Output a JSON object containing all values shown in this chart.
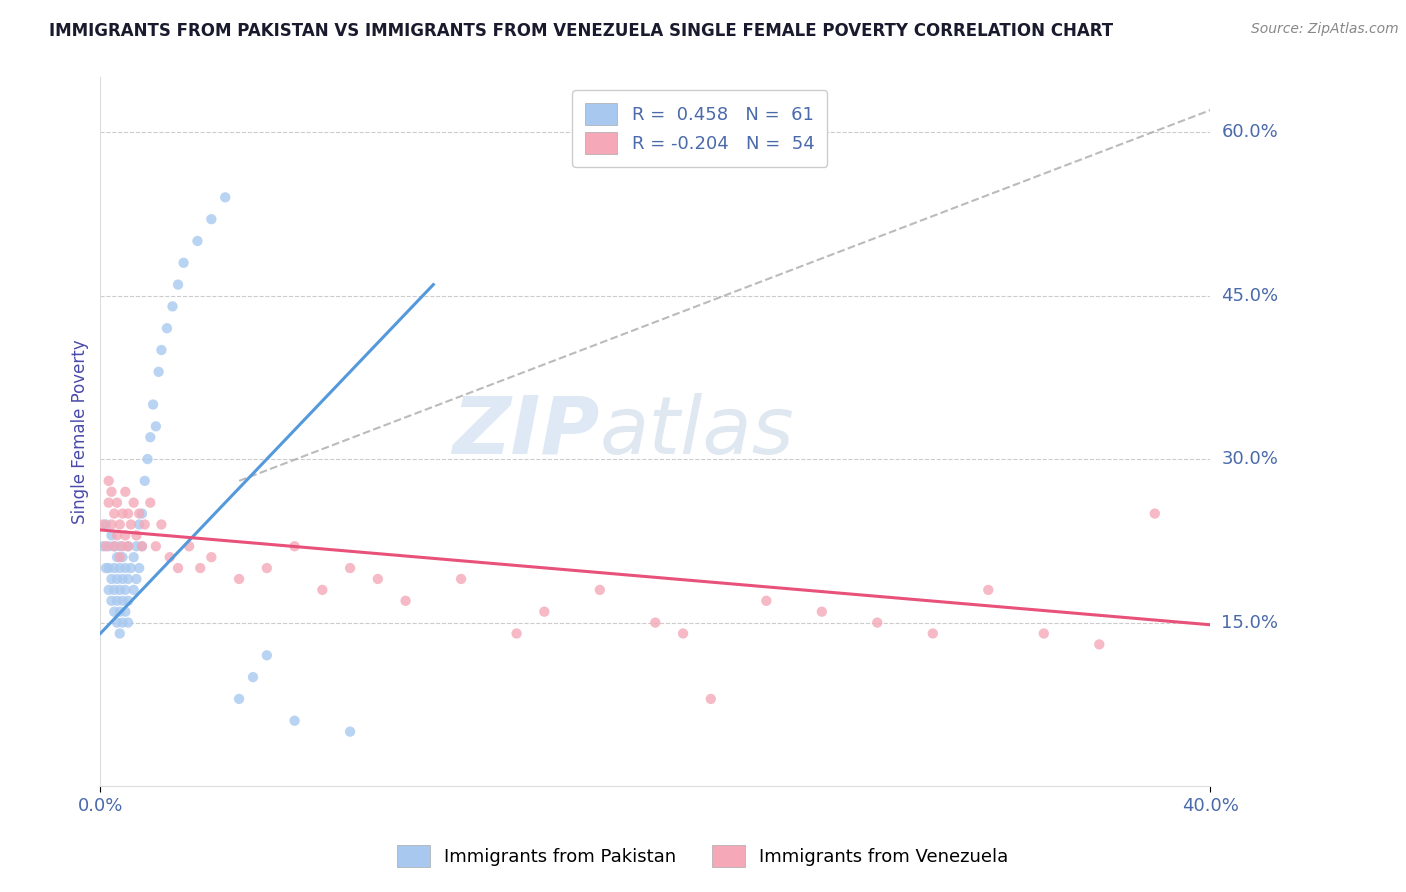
{
  "title": "IMMIGRANTS FROM PAKISTAN VS IMMIGRANTS FROM VENEZUELA SINGLE FEMALE POVERTY CORRELATION CHART",
  "source": "Source: ZipAtlas.com",
  "ylabel_left": "Single Female Poverty",
  "x_min": 0.0,
  "x_max": 0.4,
  "y_min": 0.0,
  "y_max": 0.65,
  "right_yticks": [
    0.6,
    0.45,
    0.3,
    0.15
  ],
  "right_yticklabels": [
    "60.0%",
    "45.0%",
    "30.0%",
    "15.0%"
  ],
  "pakistan_R": 0.458,
  "pakistan_N": 61,
  "venezuela_R": -0.204,
  "venezuela_N": 54,
  "pakistan_color": "#a8c8f0",
  "venezuela_color": "#f4a8b8",
  "pakistan_line_color": "#5599dd",
  "venezuela_line_color": "#e8527a",
  "pakistan_scatter_x": [
    0.001,
    0.002,
    0.002,
    0.003,
    0.003,
    0.003,
    0.004,
    0.004,
    0.004,
    0.005,
    0.005,
    0.005,
    0.005,
    0.006,
    0.006,
    0.006,
    0.006,
    0.007,
    0.007,
    0.007,
    0.007,
    0.007,
    0.008,
    0.008,
    0.008,
    0.008,
    0.009,
    0.009,
    0.009,
    0.01,
    0.01,
    0.01,
    0.01,
    0.011,
    0.012,
    0.012,
    0.013,
    0.013,
    0.014,
    0.014,
    0.015,
    0.015,
    0.016,
    0.017,
    0.018,
    0.019,
    0.02,
    0.021,
    0.022,
    0.024,
    0.026,
    0.028,
    0.03,
    0.035,
    0.04,
    0.045,
    0.05,
    0.055,
    0.06,
    0.07,
    0.09
  ],
  "pakistan_scatter_y": [
    0.22,
    0.2,
    0.24,
    0.18,
    0.2,
    0.22,
    0.17,
    0.19,
    0.23,
    0.16,
    0.18,
    0.2,
    0.22,
    0.15,
    0.17,
    0.19,
    0.21,
    0.14,
    0.16,
    0.18,
    0.2,
    0.22,
    0.15,
    0.17,
    0.19,
    0.21,
    0.16,
    0.18,
    0.2,
    0.15,
    0.17,
    0.19,
    0.22,
    0.2,
    0.18,
    0.21,
    0.19,
    0.22,
    0.2,
    0.24,
    0.22,
    0.25,
    0.28,
    0.3,
    0.32,
    0.35,
    0.33,
    0.38,
    0.4,
    0.42,
    0.44,
    0.46,
    0.48,
    0.5,
    0.52,
    0.54,
    0.08,
    0.1,
    0.12,
    0.06,
    0.05
  ],
  "venezuela_scatter_x": [
    0.001,
    0.002,
    0.003,
    0.003,
    0.004,
    0.004,
    0.005,
    0.005,
    0.006,
    0.006,
    0.007,
    0.007,
    0.008,
    0.008,
    0.009,
    0.009,
    0.01,
    0.01,
    0.011,
    0.012,
    0.013,
    0.014,
    0.015,
    0.016,
    0.018,
    0.02,
    0.022,
    0.025,
    0.028,
    0.032,
    0.036,
    0.04,
    0.05,
    0.06,
    0.07,
    0.08,
    0.09,
    0.1,
    0.11,
    0.13,
    0.15,
    0.16,
    0.18,
    0.2,
    0.21,
    0.22,
    0.24,
    0.26,
    0.28,
    0.3,
    0.32,
    0.34,
    0.36,
    0.38
  ],
  "venezuela_scatter_y": [
    0.24,
    0.22,
    0.26,
    0.28,
    0.24,
    0.27,
    0.22,
    0.25,
    0.23,
    0.26,
    0.21,
    0.24,
    0.22,
    0.25,
    0.23,
    0.27,
    0.22,
    0.25,
    0.24,
    0.26,
    0.23,
    0.25,
    0.22,
    0.24,
    0.26,
    0.22,
    0.24,
    0.21,
    0.2,
    0.22,
    0.2,
    0.21,
    0.19,
    0.2,
    0.22,
    0.18,
    0.2,
    0.19,
    0.17,
    0.19,
    0.14,
    0.16,
    0.18,
    0.15,
    0.14,
    0.08,
    0.17,
    0.16,
    0.15,
    0.14,
    0.18,
    0.14,
    0.13,
    0.25
  ],
  "watermark_zip": "ZIP",
  "watermark_atlas": "atlas",
  "background_color": "#ffffff",
  "grid_color": "#cccccc",
  "title_color": "#1a1a2e",
  "axis_color": "#4a4aaa",
  "tick_color": "#4a6aaa"
}
